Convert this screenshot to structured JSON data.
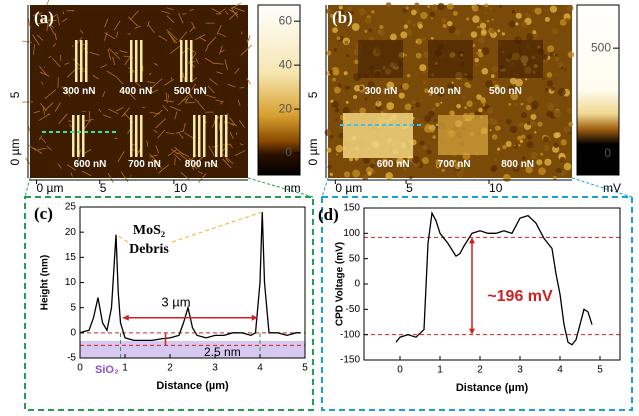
{
  "images": [
    {
      "label": "(a)",
      "loads": [
        "300 nN",
        "400 nN",
        "500 nN",
        "600 nN",
        "700 nN",
        "800 nN"
      ],
      "x_axis": [
        "0 µm",
        "5",
        "10"
      ],
      "y_axis": [
        "0 µm",
        "5"
      ],
      "colorbar": {
        "lim": [
          -10,
          66
        ],
        "ticks": [
          0,
          20,
          40,
          60
        ],
        "unit": "nm"
      }
    },
    {
      "label": "(b)",
      "loads": [
        "300 nN",
        "400 nN",
        "500 nN",
        "600 nN",
        "700 nN",
        "800 nN"
      ],
      "x_axis": [
        "0 µm",
        "5",
        "10"
      ],
      "y_axis": [
        "0 µm",
        "5"
      ],
      "colorbar": {
        "lim": [
          -100,
          690
        ],
        "ticks": [
          0,
          500
        ],
        "unit": "mV"
      }
    }
  ],
  "chart_data": [
    {
      "type": "line",
      "label": "(c)",
      "ylabel": "Height (nm)",
      "xlabel": "Distance (µm)",
      "color": "#000000",
      "x": [
        0,
        0.1,
        0.2,
        0.3,
        0.4,
        0.5,
        0.6,
        0.7,
        0.8,
        0.85,
        0.9,
        1.0,
        1.2,
        1.4,
        1.6,
        1.8,
        2.0,
        2.2,
        2.3,
        2.4,
        2.5,
        2.6,
        2.8,
        3.0,
        3.2,
        3.4,
        3.6,
        3.8,
        3.9,
        4.0,
        4.05,
        4.1,
        4.2,
        4.4,
        4.6,
        4.8,
        4.9
      ],
      "values": [
        0,
        0.3,
        0.5,
        3,
        7,
        2,
        0.5,
        5,
        19.5,
        8,
        2,
        -1,
        -1.5,
        -1.5,
        -1.5,
        -1.2,
        -1,
        -0.5,
        2,
        5,
        1,
        -0.5,
        -1,
        -0.5,
        -0.5,
        0,
        0,
        -0.5,
        0,
        10,
        24,
        10,
        0,
        0,
        -0.5,
        0,
        0
      ],
      "xlim": [
        0,
        5
      ],
      "ylim": [
        -5,
        25
      ],
      "xticks": [
        0,
        1,
        2,
        3,
        4,
        5
      ],
      "yticks": [
        -5,
        0,
        5,
        10,
        15,
        20,
        25
      ],
      "hlines": [
        0,
        -2.5
      ],
      "vlines": [
        0.9,
        4.0
      ],
      "annotations": [
        "MoS₂",
        "Debris",
        "3 µm",
        "2.5 nm",
        "SiO₂"
      ]
    },
    {
      "type": "line",
      "label": "(d)",
      "ylabel": "CPD Voltage (mV)",
      "xlabel": "Distance (µm)",
      "color": "#000000",
      "x": [
        -0.1,
        0,
        0.2,
        0.4,
        0.6,
        0.7,
        0.8,
        0.9,
        1.0,
        1.2,
        1.4,
        1.5,
        1.6,
        1.8,
        2.0,
        2.2,
        2.4,
        2.6,
        2.8,
        3.0,
        3.2,
        3.4,
        3.6,
        3.8,
        3.9,
        4.0,
        4.1,
        4.2,
        4.3,
        4.4,
        4.5,
        4.6,
        4.7,
        4.8
      ],
      "values": [
        -115,
        -105,
        -100,
        -105,
        -90,
        80,
        140,
        125,
        100,
        80,
        55,
        60,
        75,
        100,
        105,
        100,
        100,
        105,
        100,
        130,
        135,
        120,
        90,
        70,
        20,
        -20,
        -80,
        -115,
        -120,
        -110,
        -80,
        -50,
        -55,
        -80
      ],
      "xlim": [
        -0.9,
        5.5
      ],
      "ylim": [
        -150,
        150
      ],
      "xticks": [
        0,
        1,
        2,
        3,
        4,
        5
      ],
      "yticks": [
        -150,
        -100,
        -50,
        0,
        50,
        100,
        150
      ],
      "hlines": [
        92,
        -100
      ],
      "vlines": [],
      "annotations": [
        "~196 mV"
      ]
    }
  ]
}
